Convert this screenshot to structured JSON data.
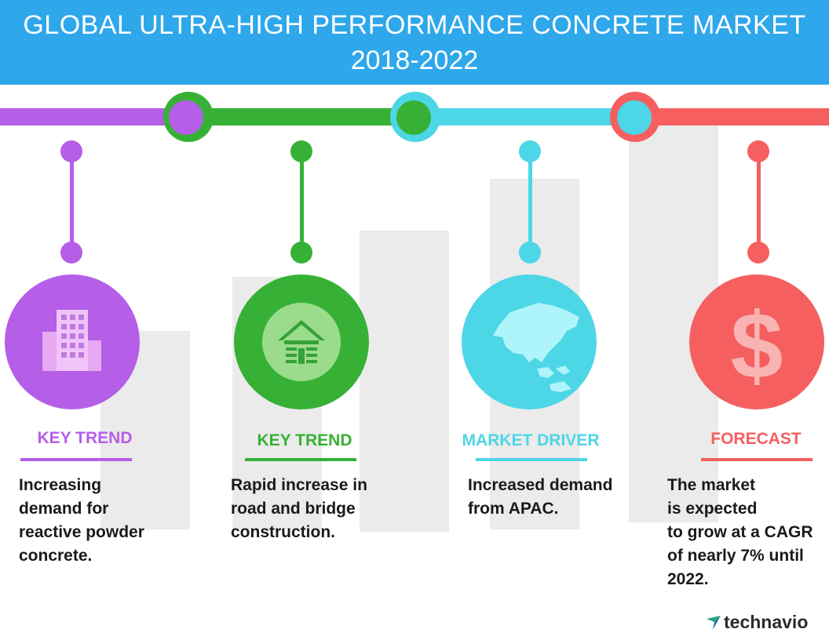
{
  "header": {
    "title_line1": "GLOBAL ULTRA-HIGH PERFORMANCE CONCRETE MARKET",
    "title_line2": "2018-2022"
  },
  "colors": {
    "header_bg": "#2ea7eb",
    "purple": "#b55ee8",
    "green": "#36b136",
    "cyan": "#4dd6e6",
    "red": "#f55f5f"
  },
  "cards": [
    {
      "category": "KEY TREND",
      "description": "Increasing\ndemand for\nreactive powder\nconcrete.",
      "icon": "building-icon",
      "color": "purple"
    },
    {
      "category": "KEY TREND",
      "description": "Rapid increase in\nroad and bridge\nconstruction.",
      "icon": "house-icon",
      "color": "green"
    },
    {
      "category": "MARKET DRIVER",
      "description": "Increased demand\nfrom APAC.",
      "icon": "asia-map-icon",
      "color": "cyan"
    },
    {
      "category": "FORECAST",
      "description": "The market\nis expected\nto grow at a CAGR\nof nearly 7% until\n2022.",
      "icon": "dollar-icon",
      "color": "red"
    }
  ],
  "brand": {
    "name": "technavio"
  }
}
